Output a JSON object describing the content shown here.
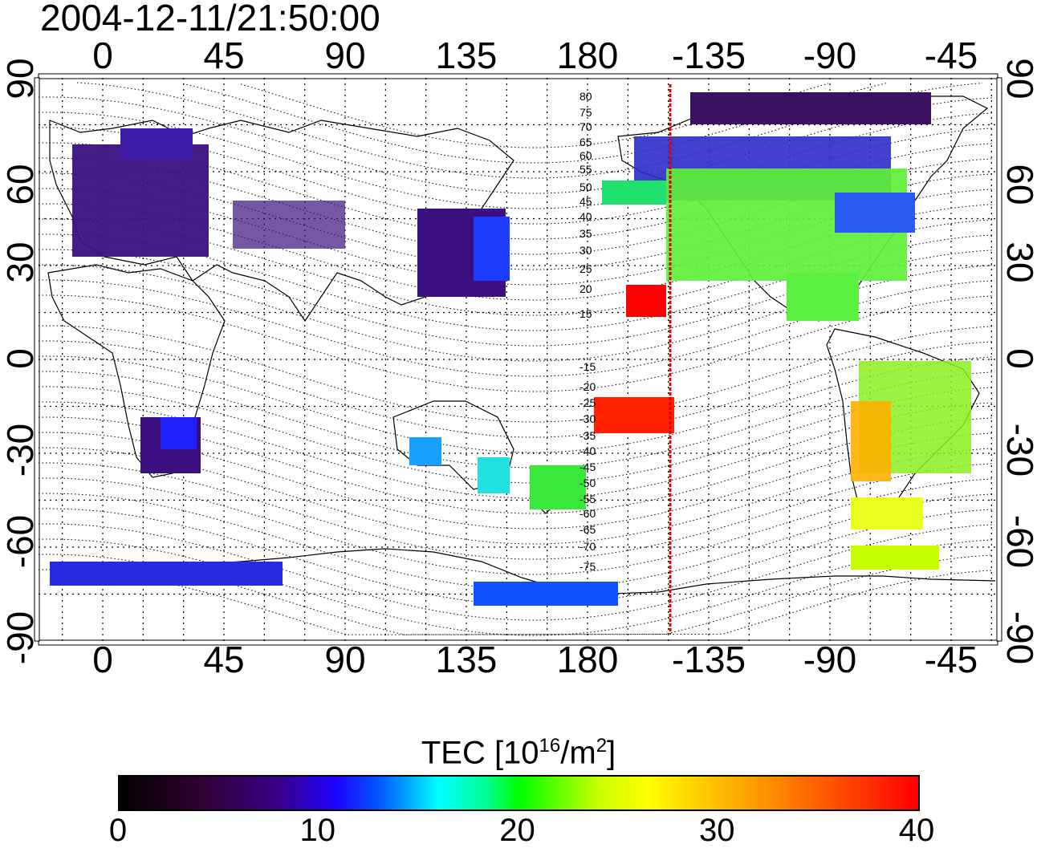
{
  "timestamp": "2004-12-11/21:50:00",
  "map": {
    "lon_tick_labels": [
      "0",
      "45",
      "90",
      "135",
      "180",
      "-135",
      "-90",
      "-45"
    ],
    "lat_tick_labels": [
      "90",
      "60",
      "30",
      "0",
      "-30",
      "-60",
      "-90"
    ],
    "graticule": "dotted",
    "terminator_color": "#e00000",
    "contour_labels": [
      "80",
      "75",
      "70",
      "65",
      "60",
      "55",
      "50",
      "45",
      "40",
      "35",
      "30",
      "25",
      "20",
      "15",
      "-15",
      "-20",
      "-25",
      "-30",
      "-35",
      "-40",
      "-45",
      "-50",
      "-55",
      "-60",
      "-65",
      "-70",
      "-75"
    ]
  },
  "colorbar": {
    "title_prefix": "TEC  [10",
    "title_exp1": "16",
    "title_mid": "/m",
    "title_exp2": "2",
    "title_suffix": "]",
    "tick_labels": [
      "0",
      "10",
      "20",
      "30",
      "40"
    ],
    "range": [
      0,
      40
    ]
  }
}
